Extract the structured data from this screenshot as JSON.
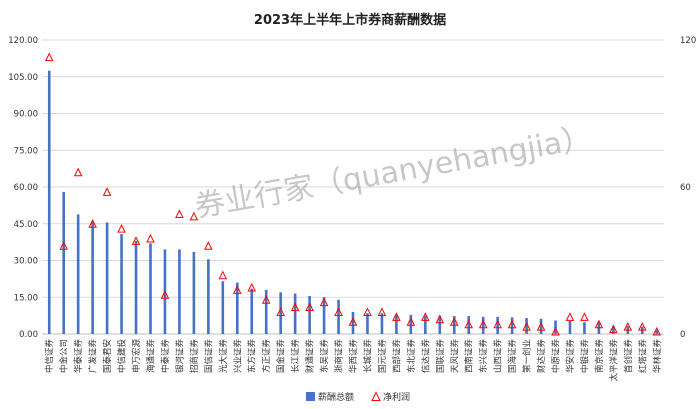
{
  "chart_data": {
    "type": "bar",
    "title": "2023年上半年上市券商薪酬数据",
    "categories": [
      "中信证券",
      "中金公司",
      "华泰证券",
      "广发证券",
      "国泰君安",
      "中信建投",
      "申万宏源",
      "海通证券",
      "中泰证券",
      "银河证券",
      "招商证券",
      "国信证券",
      "光大证券",
      "兴业证券",
      "东方证券",
      "方正证券",
      "国金证券",
      "长江证券",
      "财通证券",
      "东吴证券",
      "浙商证券",
      "华西证券",
      "长城证券",
      "国元证券",
      "西部证券",
      "东北证券",
      "信达证券",
      "国联证券",
      "天风证券",
      "西南证券",
      "东兴证券",
      "山西证券",
      "国海证券",
      "第一创业",
      "财达证券",
      "中原证券",
      "华安证券",
      "中银证券",
      "南京证券",
      "太平洋证券",
      "首创证券",
      "红塔证券",
      "华林证券"
    ],
    "series": [
      {
        "name": "薪酬总额",
        "type": "bar",
        "axis": "left",
        "color": "#4472c4",
        "values": [
          107.5,
          58,
          48.8,
          46,
          45.5,
          40.8,
          38,
          37,
          34.5,
          34.5,
          33.5,
          30.5,
          21.5,
          21,
          18.5,
          18,
          17,
          16.5,
          15.5,
          15,
          14,
          9,
          8.5,
          8.5,
          7.8,
          7.8,
          7.5,
          7.5,
          7.3,
          7.3,
          7,
          7,
          6.8,
          6.5,
          6.2,
          5.5,
          5.3,
          4.8,
          4.8,
          3.3,
          3.2,
          3,
          1.7
        ]
      },
      {
        "name": "净利润",
        "type": "scatter",
        "marker": "triangle",
        "axis": "right",
        "color": "#ff0000",
        "values": [
          113,
          36,
          66,
          45,
          58,
          43,
          38,
          39,
          16,
          49,
          48,
          36,
          24,
          18,
          19,
          14,
          9,
          11,
          11,
          13,
          9,
          5,
          9,
          9,
          7,
          5,
          7,
          6,
          5,
          4,
          4,
          4,
          4,
          3,
          3,
          1,
          7,
          7,
          4,
          2,
          3,
          3,
          1
        ]
      }
    ],
    "ylim_left": [
      0,
      120
    ],
    "ylim_right": [
      0,
      120
    ],
    "yticks_left": [
      "0.00",
      "15.00",
      "30.00",
      "45.00",
      "60.00",
      "75.00",
      "90.00",
      "105.00",
      "120.00"
    ],
    "yticks_right": [
      "0",
      "60",
      "120"
    ],
    "legend_position": "bottom",
    "grid": true
  },
  "watermark": "券业行家（quanyehangjia）"
}
